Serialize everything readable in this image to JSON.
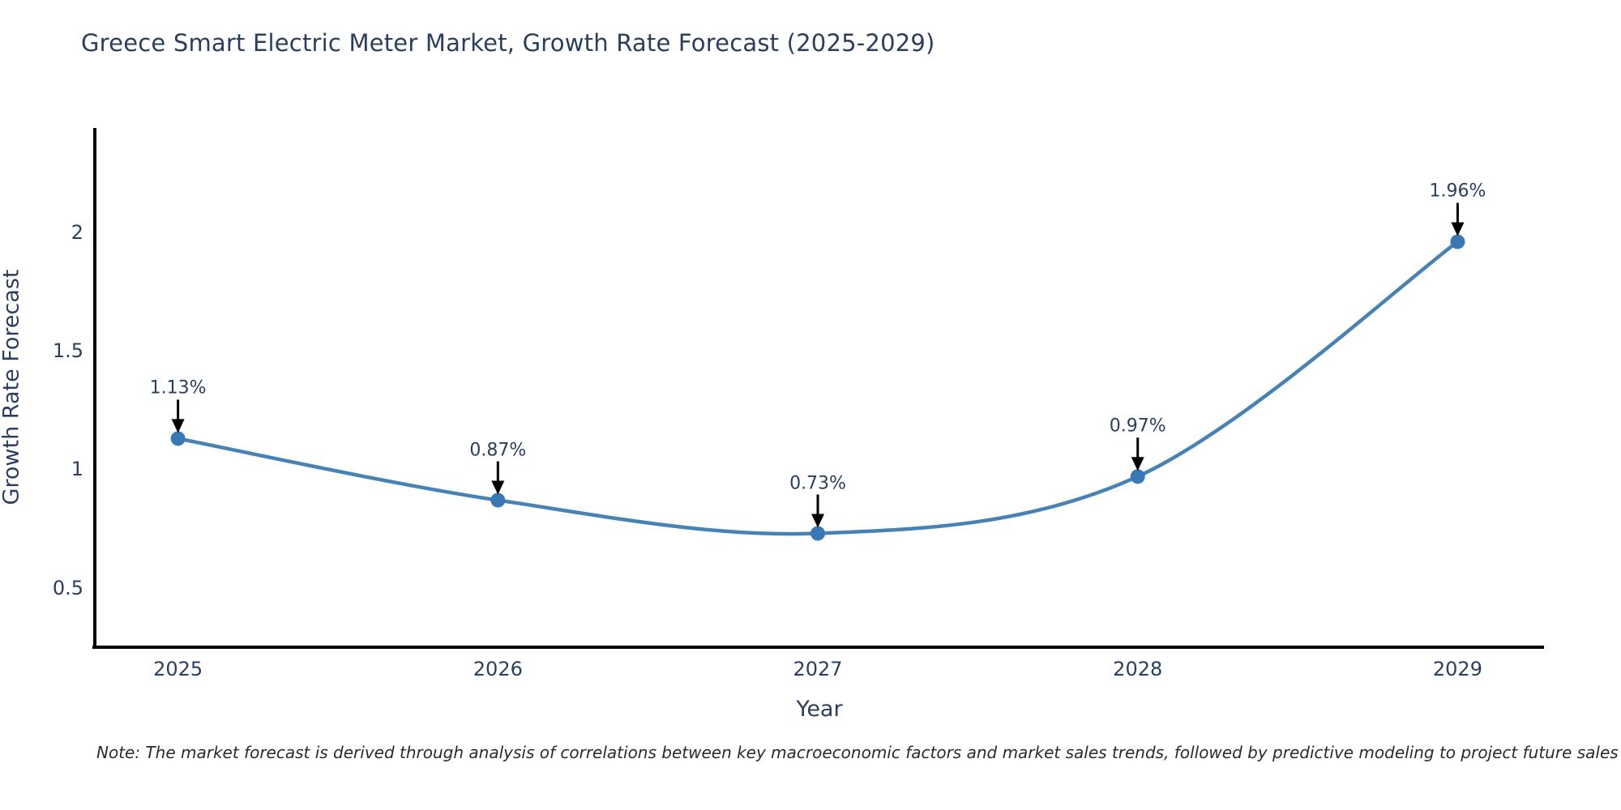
{
  "page": {
    "background": "#ffffff"
  },
  "chart_data": {
    "type": "line",
    "title": "Greece Smart Electric Meter Market, Growth Rate Forecast (2025-2029)",
    "xlabel": "Year",
    "ylabel": "Growth Rate Forecast",
    "x": [
      2025,
      2026,
      2027,
      2028,
      2029
    ],
    "series": [
      {
        "name": "Growth Rate Forecast",
        "values": [
          1.13,
          0.87,
          0.73,
          0.97,
          1.96
        ]
      }
    ],
    "point_labels": [
      "1.13%",
      "0.87%",
      "0.73%",
      "0.97%",
      "1.96%"
    ],
    "xticks": [
      "2025",
      "2026",
      "2027",
      "2028",
      "2029"
    ],
    "yticks": [
      0.5,
      1,
      1.5,
      2
    ],
    "xlim": [
      2024.74,
      2029.27
    ],
    "ylim": [
      0.25,
      2.44
    ],
    "grid": false,
    "legend_position": "none",
    "line_shape": "spline",
    "annotation_arrows": true,
    "colors": {
      "line": "#4682b4",
      "marker": "#3878b4",
      "arrow": "#000000",
      "axis_line": "#000000",
      "title_text": "#2a3f5f",
      "tick_text": "#2a3f5f",
      "note_text": "#2b2b2b"
    },
    "note": "Note: The market forecast is derived through analysis of correlations between key macroeconomic factors and market sales trends, followed by predictive modeling to project future sales"
  }
}
